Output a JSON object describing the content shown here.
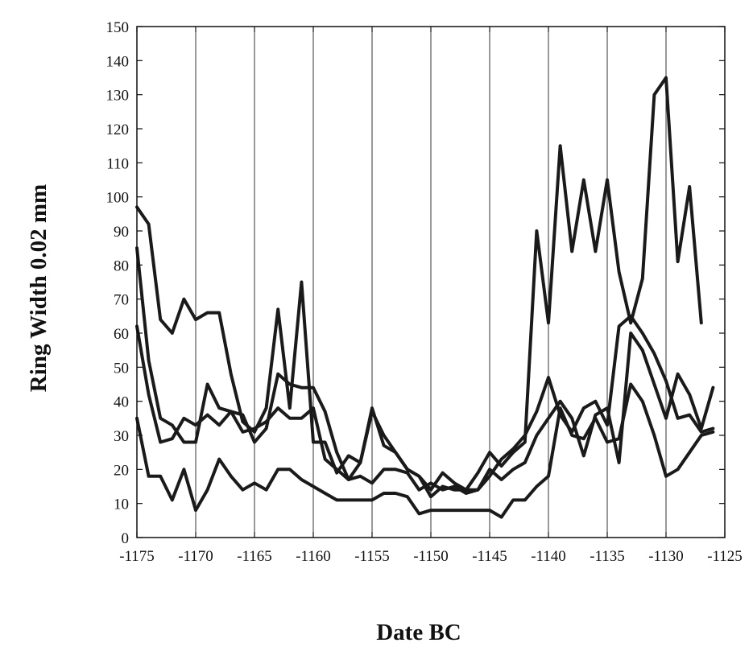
{
  "chart_data": {
    "type": "line",
    "title": "",
    "xlabel": "Date BC",
    "ylabel": "Ring Width 0.02 mm",
    "xlim": [
      -1175,
      -1125
    ],
    "ylim": [
      0,
      150
    ],
    "xticks": [
      -1175,
      -1170,
      -1165,
      -1160,
      -1155,
      -1150,
      -1145,
      -1140,
      -1135,
      -1130,
      -1125
    ],
    "yticks": [
      0,
      10,
      20,
      30,
      40,
      50,
      60,
      70,
      80,
      90,
      100,
      110,
      120,
      130,
      140,
      150
    ],
    "grid": "vertical",
    "legend": "none",
    "line_color": "#1a1a1a",
    "series": [
      {
        "x": [
          -1175,
          -1174,
          -1173,
          -1172,
          -1171,
          -1170,
          -1169,
          -1168,
          -1167,
          -1166,
          -1165,
          -1164,
          -1163,
          -1162,
          -1161,
          -1160,
          -1159,
          -1158,
          -1157,
          -1156,
          -1155,
          -1154,
          -1153,
          -1152,
          -1151,
          -1150,
          -1149,
          -1148,
          -1147,
          -1146,
          -1145,
          -1144,
          -1143,
          -1142,
          -1141,
          -1140,
          -1139,
          -1138,
          -1137,
          -1136,
          -1135,
          -1134,
          -1133,
          -1132,
          -1131,
          -1130,
          -1129,
          -1128,
          -1127,
          -1126
        ],
        "values": [
          97,
          92,
          64,
          60,
          70,
          64,
          66,
          66,
          48,
          34,
          31,
          38,
          67,
          38,
          75,
          28,
          28,
          19,
          24,
          22,
          37,
          30,
          25,
          20,
          18,
          14,
          19,
          16,
          14,
          19,
          25,
          21,
          25,
          28,
          90,
          63,
          115,
          84,
          105,
          84,
          105,
          78,
          63,
          76,
          130,
          135,
          81,
          103,
          63,
          null
        ]
      },
      {
        "x": [
          -1175,
          -1174,
          -1173,
          -1172,
          -1171,
          -1170,
          -1169,
          -1168,
          -1167,
          -1166,
          -1165,
          -1164,
          -1163,
          -1162,
          -1161,
          -1160,
          -1159,
          -1158,
          -1157,
          -1156,
          -1155,
          -1154,
          -1153,
          -1152,
          -1151,
          -1150,
          -1149,
          -1148,
          -1147,
          -1146,
          -1145,
          -1144,
          -1143,
          -1142,
          -1141,
          -1140,
          -1139,
          -1138,
          -1137,
          -1136,
          -1135,
          -1134,
          -1133,
          -1132,
          -1131,
          -1130,
          -1129,
          -1128,
          -1127,
          -1126
        ],
        "values": [
          85,
          52,
          35,
          33,
          28,
          28,
          45,
          38,
          37,
          36,
          28,
          32,
          48,
          45,
          44,
          44,
          37,
          25,
          17,
          22,
          38,
          27,
          25,
          20,
          18,
          12,
          15,
          14,
          14,
          14,
          18,
          23,
          26,
          30,
          37,
          47,
          36,
          31,
          38,
          40,
          33,
          62,
          65,
          60,
          54,
          46,
          35,
          36,
          31,
          32
        ]
      },
      {
        "x": [
          -1175,
          -1174,
          -1173,
          -1172,
          -1171,
          -1170,
          -1169,
          -1168,
          -1167,
          -1166,
          -1165,
          -1164,
          -1163,
          -1162,
          -1161,
          -1160,
          -1159,
          -1158,
          -1157,
          -1156,
          -1155,
          -1154,
          -1153,
          -1152,
          -1151,
          -1150,
          -1149,
          -1148,
          -1147,
          -1146,
          -1145,
          -1144,
          -1143,
          -1142,
          -1141,
          -1140,
          -1139,
          -1138,
          -1137,
          -1136,
          -1135,
          -1134,
          -1133,
          -1132,
          -1131,
          -1130,
          -1129,
          -1128,
          -1127,
          -1126
        ],
        "values": [
          62,
          42,
          28,
          29,
          35,
          33,
          36,
          33,
          37,
          31,
          32,
          34,
          38,
          35,
          35,
          38,
          23,
          20,
          17,
          18,
          16,
          20,
          20,
          19,
          14,
          16,
          14,
          15,
          13,
          14,
          20,
          17,
          20,
          22,
          30,
          35,
          40,
          35,
          24,
          36,
          38,
          22,
          60,
          55,
          45,
          35,
          48,
          42,
          32,
          44
        ]
      },
      {
        "x": [
          -1175,
          -1174,
          -1173,
          -1172,
          -1171,
          -1170,
          -1169,
          -1168,
          -1167,
          -1166,
          -1165,
          -1164,
          -1163,
          -1162,
          -1161,
          -1160,
          -1159,
          -1158,
          -1157,
          -1156,
          -1155,
          -1154,
          -1153,
          -1152,
          -1151,
          -1150,
          -1149,
          -1148,
          -1147,
          -1146,
          -1145,
          -1144,
          -1143,
          -1142,
          -1141,
          -1140,
          -1139,
          -1138,
          -1137,
          -1136,
          -1135,
          -1134,
          -1133,
          -1132,
          -1131,
          -1130,
          -1129,
          -1128,
          -1127,
          -1126
        ],
        "values": [
          35,
          18,
          18,
          11,
          20,
          8,
          14,
          23,
          18,
          14,
          16,
          14,
          20,
          20,
          17,
          15,
          13,
          11,
          11,
          11,
          11,
          13,
          13,
          12,
          7,
          8,
          8,
          8,
          8,
          8,
          8,
          6,
          11,
          11,
          15,
          18,
          38,
          30,
          29,
          35,
          28,
          29,
          45,
          40,
          30,
          18,
          20,
          25,
          30,
          31
        ]
      }
    ]
  }
}
